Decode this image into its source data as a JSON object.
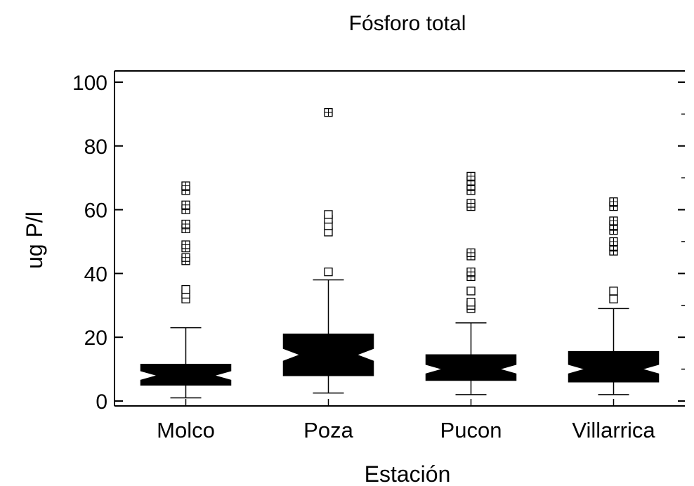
{
  "chart_data": {
    "type": "box",
    "title": "Fósforo total",
    "xlabel": "Estación",
    "ylabel": "ug P/l",
    "ylim": [
      0,
      100
    ],
    "yticks": [
      0,
      20,
      40,
      60,
      80,
      100
    ],
    "grid": false,
    "notched": true,
    "categories": [
      "Molco",
      "Poza",
      "Pucon",
      "Villarrica"
    ],
    "boxes": [
      {
        "category": "Molco",
        "whisker_low": 1,
        "q1": 5,
        "median": 8,
        "q3": 11.5,
        "whisker_high": 23,
        "notch_low": 6.5,
        "notch_high": 9.5,
        "outliers_near": [
          32,
          33.5,
          35
        ],
        "outliers_far": [
          44,
          45,
          48,
          49,
          54,
          55.5,
          60,
          61.5,
          66,
          67.5
        ]
      },
      {
        "category": "Poza",
        "whisker_low": 2.5,
        "q1": 8,
        "median": 14.5,
        "q3": 21,
        "whisker_high": 38,
        "notch_low": 12.5,
        "notch_high": 16.5,
        "outliers_near": [
          40.5,
          53,
          55,
          57,
          58.5
        ],
        "outliers_far": [
          90.5
        ]
      },
      {
        "category": "Pucon",
        "whisker_low": 2,
        "q1": 6.5,
        "median": 10,
        "q3": 14.5,
        "whisker_high": 24.5,
        "notch_low": 8.5,
        "notch_high": 11.5,
        "outliers_near": [
          29,
          30,
          31,
          34.5
        ],
        "outliers_far": [
          39,
          40.5,
          45.5,
          46.5,
          61,
          62,
          66,
          67.5,
          69,
          70.5
        ]
      },
      {
        "category": "Villarrica",
        "whisker_low": 2,
        "q1": 6,
        "median": 10,
        "q3": 15.5,
        "whisker_high": 29,
        "notch_low": 8.5,
        "notch_high": 11.5,
        "outliers_near": [
          32,
          34.5
        ],
        "outliers_far": [
          47,
          48.5,
          50,
          53.5,
          55,
          56.5,
          61,
          62.5
        ]
      }
    ]
  }
}
